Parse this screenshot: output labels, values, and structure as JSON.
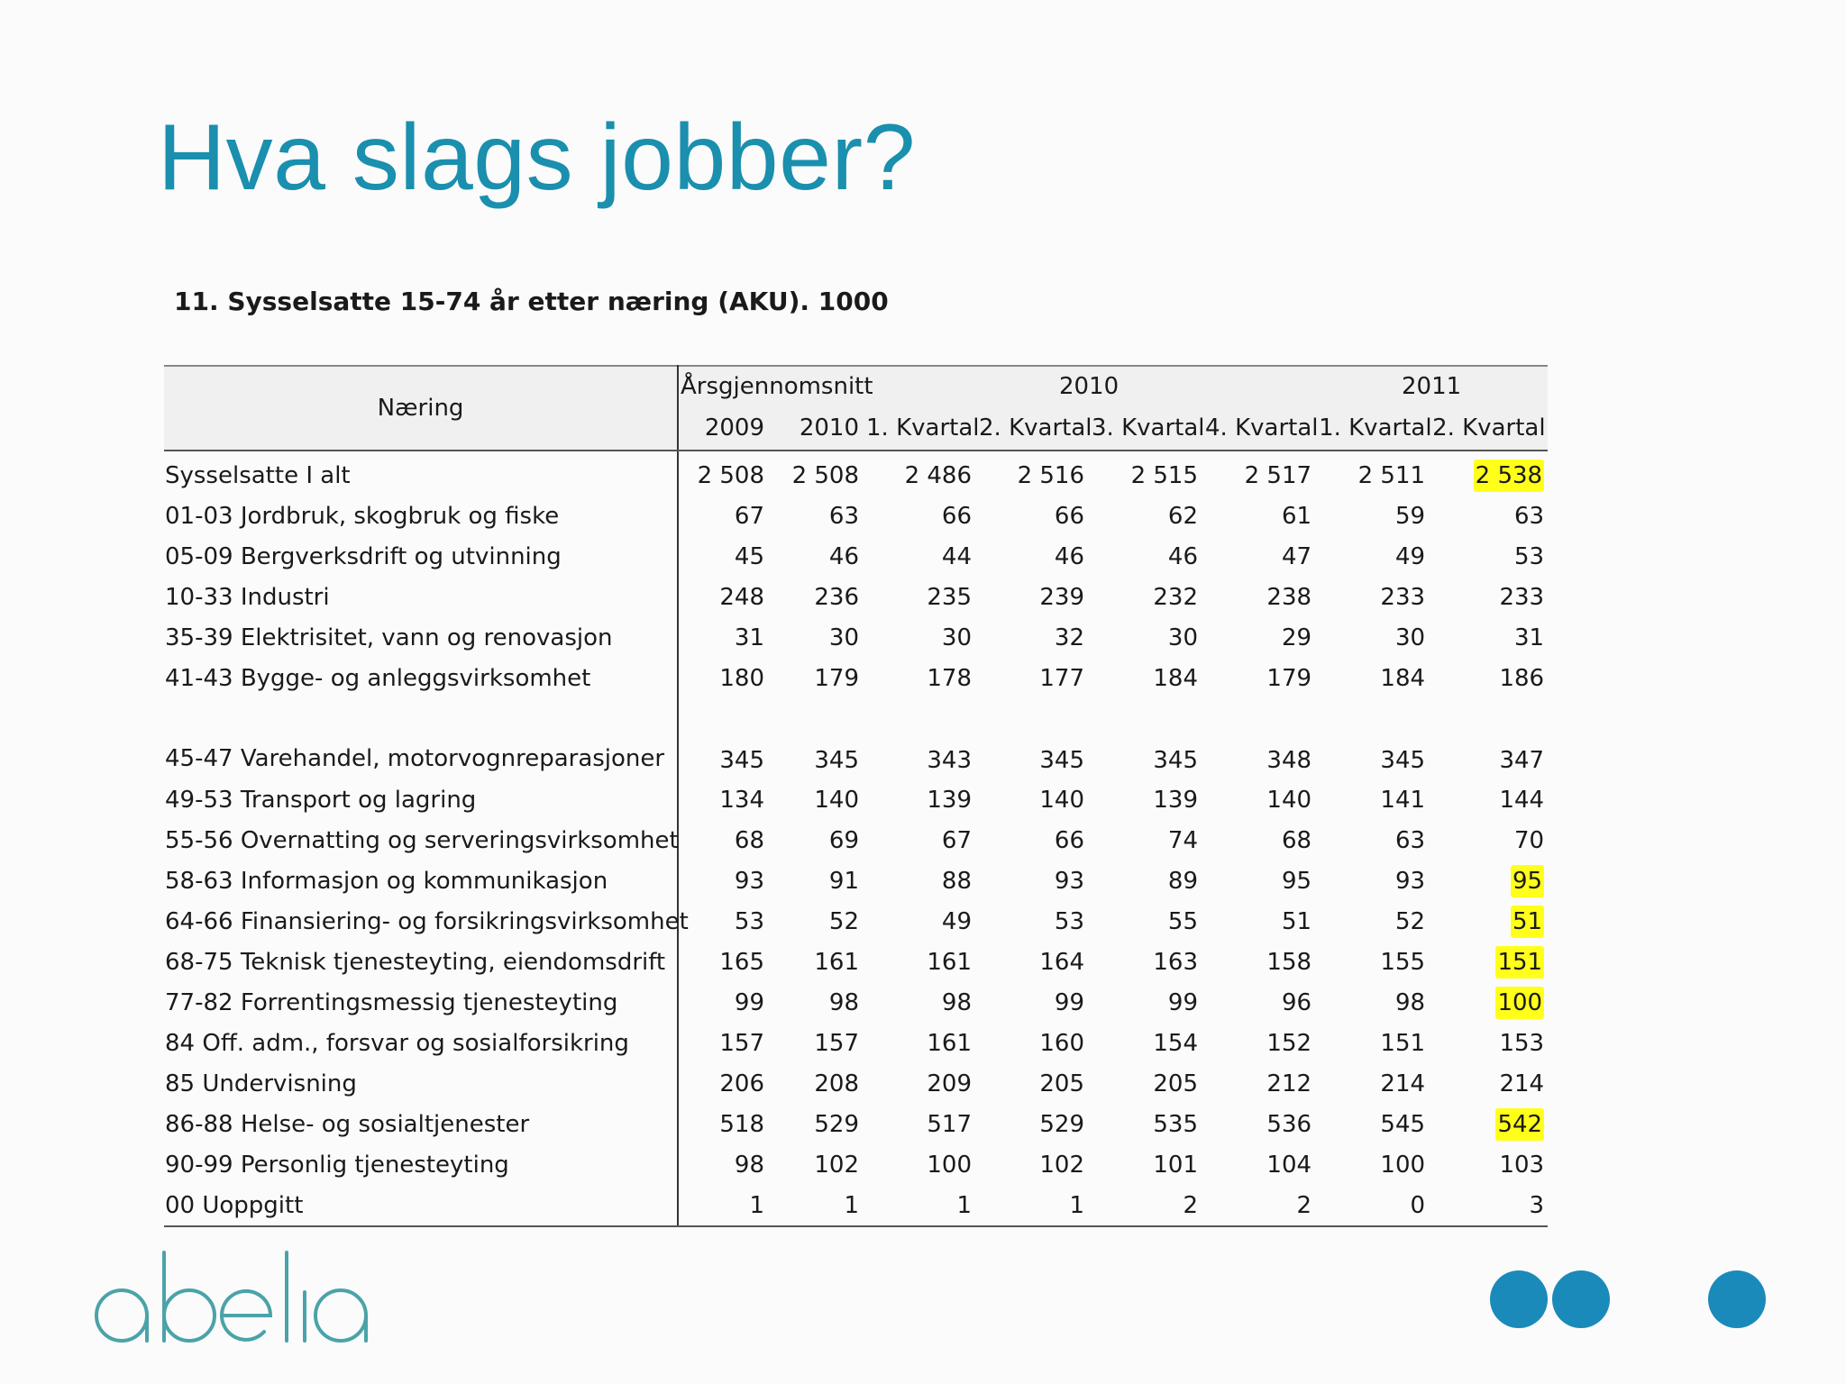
{
  "slide": {
    "title": "Hva slags jobber?",
    "logo_text": "abelia",
    "accent_color": "#1a8fae",
    "highlight_color": "#ffff1a"
  },
  "table": {
    "caption": "11. Sysselsatte 15-74 år etter næring (AKU). 1000",
    "header": {
      "row_label": "Næring",
      "group_1": "Årsgjennomsnitt",
      "group_2": "2010",
      "group_3": "2011",
      "sub": [
        "2009",
        "2010",
        "1. Kvartal",
        "2. Kvartal",
        "3. Kvartal",
        "4. Kvartal",
        "1. Kvartal",
        "2. Kvartal"
      ]
    },
    "rows": [
      {
        "label": "Sysselsatte I alt",
        "values": [
          "2 508",
          "2 508",
          "2 486",
          "2 516",
          "2 515",
          "2 517",
          "2 511",
          "2 538"
        ],
        "highlight_last": true
      },
      {
        "label": "01-03 Jordbruk, skogbruk og fiske",
        "values": [
          "67",
          "63",
          "66",
          "66",
          "62",
          "61",
          "59",
          "63"
        ],
        "highlight_last": false
      },
      {
        "label": "05-09 Bergverksdrift og utvinning",
        "values": [
          "45",
          "46",
          "44",
          "46",
          "46",
          "47",
          "49",
          "53"
        ],
        "highlight_last": false
      },
      {
        "label": "10-33 Industri",
        "values": [
          "248",
          "236",
          "235",
          "239",
          "232",
          "238",
          "233",
          "233"
        ],
        "highlight_last": false
      },
      {
        "label": "35-39 Elektrisitet, vann og renovasjon",
        "values": [
          "31",
          "30",
          "30",
          "32",
          "30",
          "29",
          "30",
          "31"
        ],
        "highlight_last": false
      },
      {
        "label": "41-43 Bygge- og anleggsvirksomhet",
        "values": [
          "180",
          "179",
          "178",
          "177",
          "184",
          "179",
          "184",
          "186"
        ],
        "highlight_last": false
      },
      {
        "label": "45-47 Varehandel, motorvognreparasjoner",
        "values": [
          "345",
          "345",
          "343",
          "345",
          "345",
          "348",
          "345",
          "347"
        ],
        "highlight_last": false,
        "tall": true
      },
      {
        "label": "49-53 Transport og lagring",
        "values": [
          "134",
          "140",
          "139",
          "140",
          "139",
          "140",
          "141",
          "144"
        ],
        "highlight_last": false
      },
      {
        "label": "55-56 Overnatting og serveringsvirksomhet",
        "values": [
          "68",
          "69",
          "67",
          "66",
          "74",
          "68",
          "63",
          "70"
        ],
        "highlight_last": false
      },
      {
        "label": "58-63 Informasjon og kommunikasjon",
        "values": [
          "93",
          "91",
          "88",
          "93",
          "89",
          "95",
          "93",
          "95"
        ],
        "highlight_last": true
      },
      {
        "label": "64-66 Finansiering- og forsikringsvirksomhet",
        "values": [
          "53",
          "52",
          "49",
          "53",
          "55",
          "51",
          "52",
          "51"
        ],
        "highlight_last": true
      },
      {
        "label": "68-75 Teknisk tjenesteyting, eiendomsdrift",
        "values": [
          "165",
          "161",
          "161",
          "164",
          "163",
          "158",
          "155",
          "151"
        ],
        "highlight_last": true
      },
      {
        "label": "77-82 Forrentingsmessig tjenesteyting",
        "values": [
          "99",
          "98",
          "98",
          "99",
          "99",
          "96",
          "98",
          "100"
        ],
        "highlight_last": true
      },
      {
        "label": "84 Off. adm., forsvar og sosialforsikring",
        "values": [
          "157",
          "157",
          "161",
          "160",
          "154",
          "152",
          "151",
          "153"
        ],
        "highlight_last": false
      },
      {
        "label": "85 Undervisning",
        "values": [
          "206",
          "208",
          "209",
          "205",
          "205",
          "212",
          "214",
          "214"
        ],
        "highlight_last": false
      },
      {
        "label": "86-88 Helse- og sosialtjenester",
        "values": [
          "518",
          "529",
          "517",
          "529",
          "535",
          "536",
          "545",
          "542"
        ],
        "highlight_last": true
      },
      {
        "label": "90-99 Personlig tjenesteyting",
        "values": [
          "98",
          "102",
          "100",
          "102",
          "101",
          "104",
          "100",
          "103"
        ],
        "highlight_last": false
      },
      {
        "label": "00 Uoppgitt",
        "values": [
          "1",
          "1",
          "1",
          "1",
          "2",
          "2",
          "0",
          "3"
        ],
        "highlight_last": false
      }
    ]
  }
}
